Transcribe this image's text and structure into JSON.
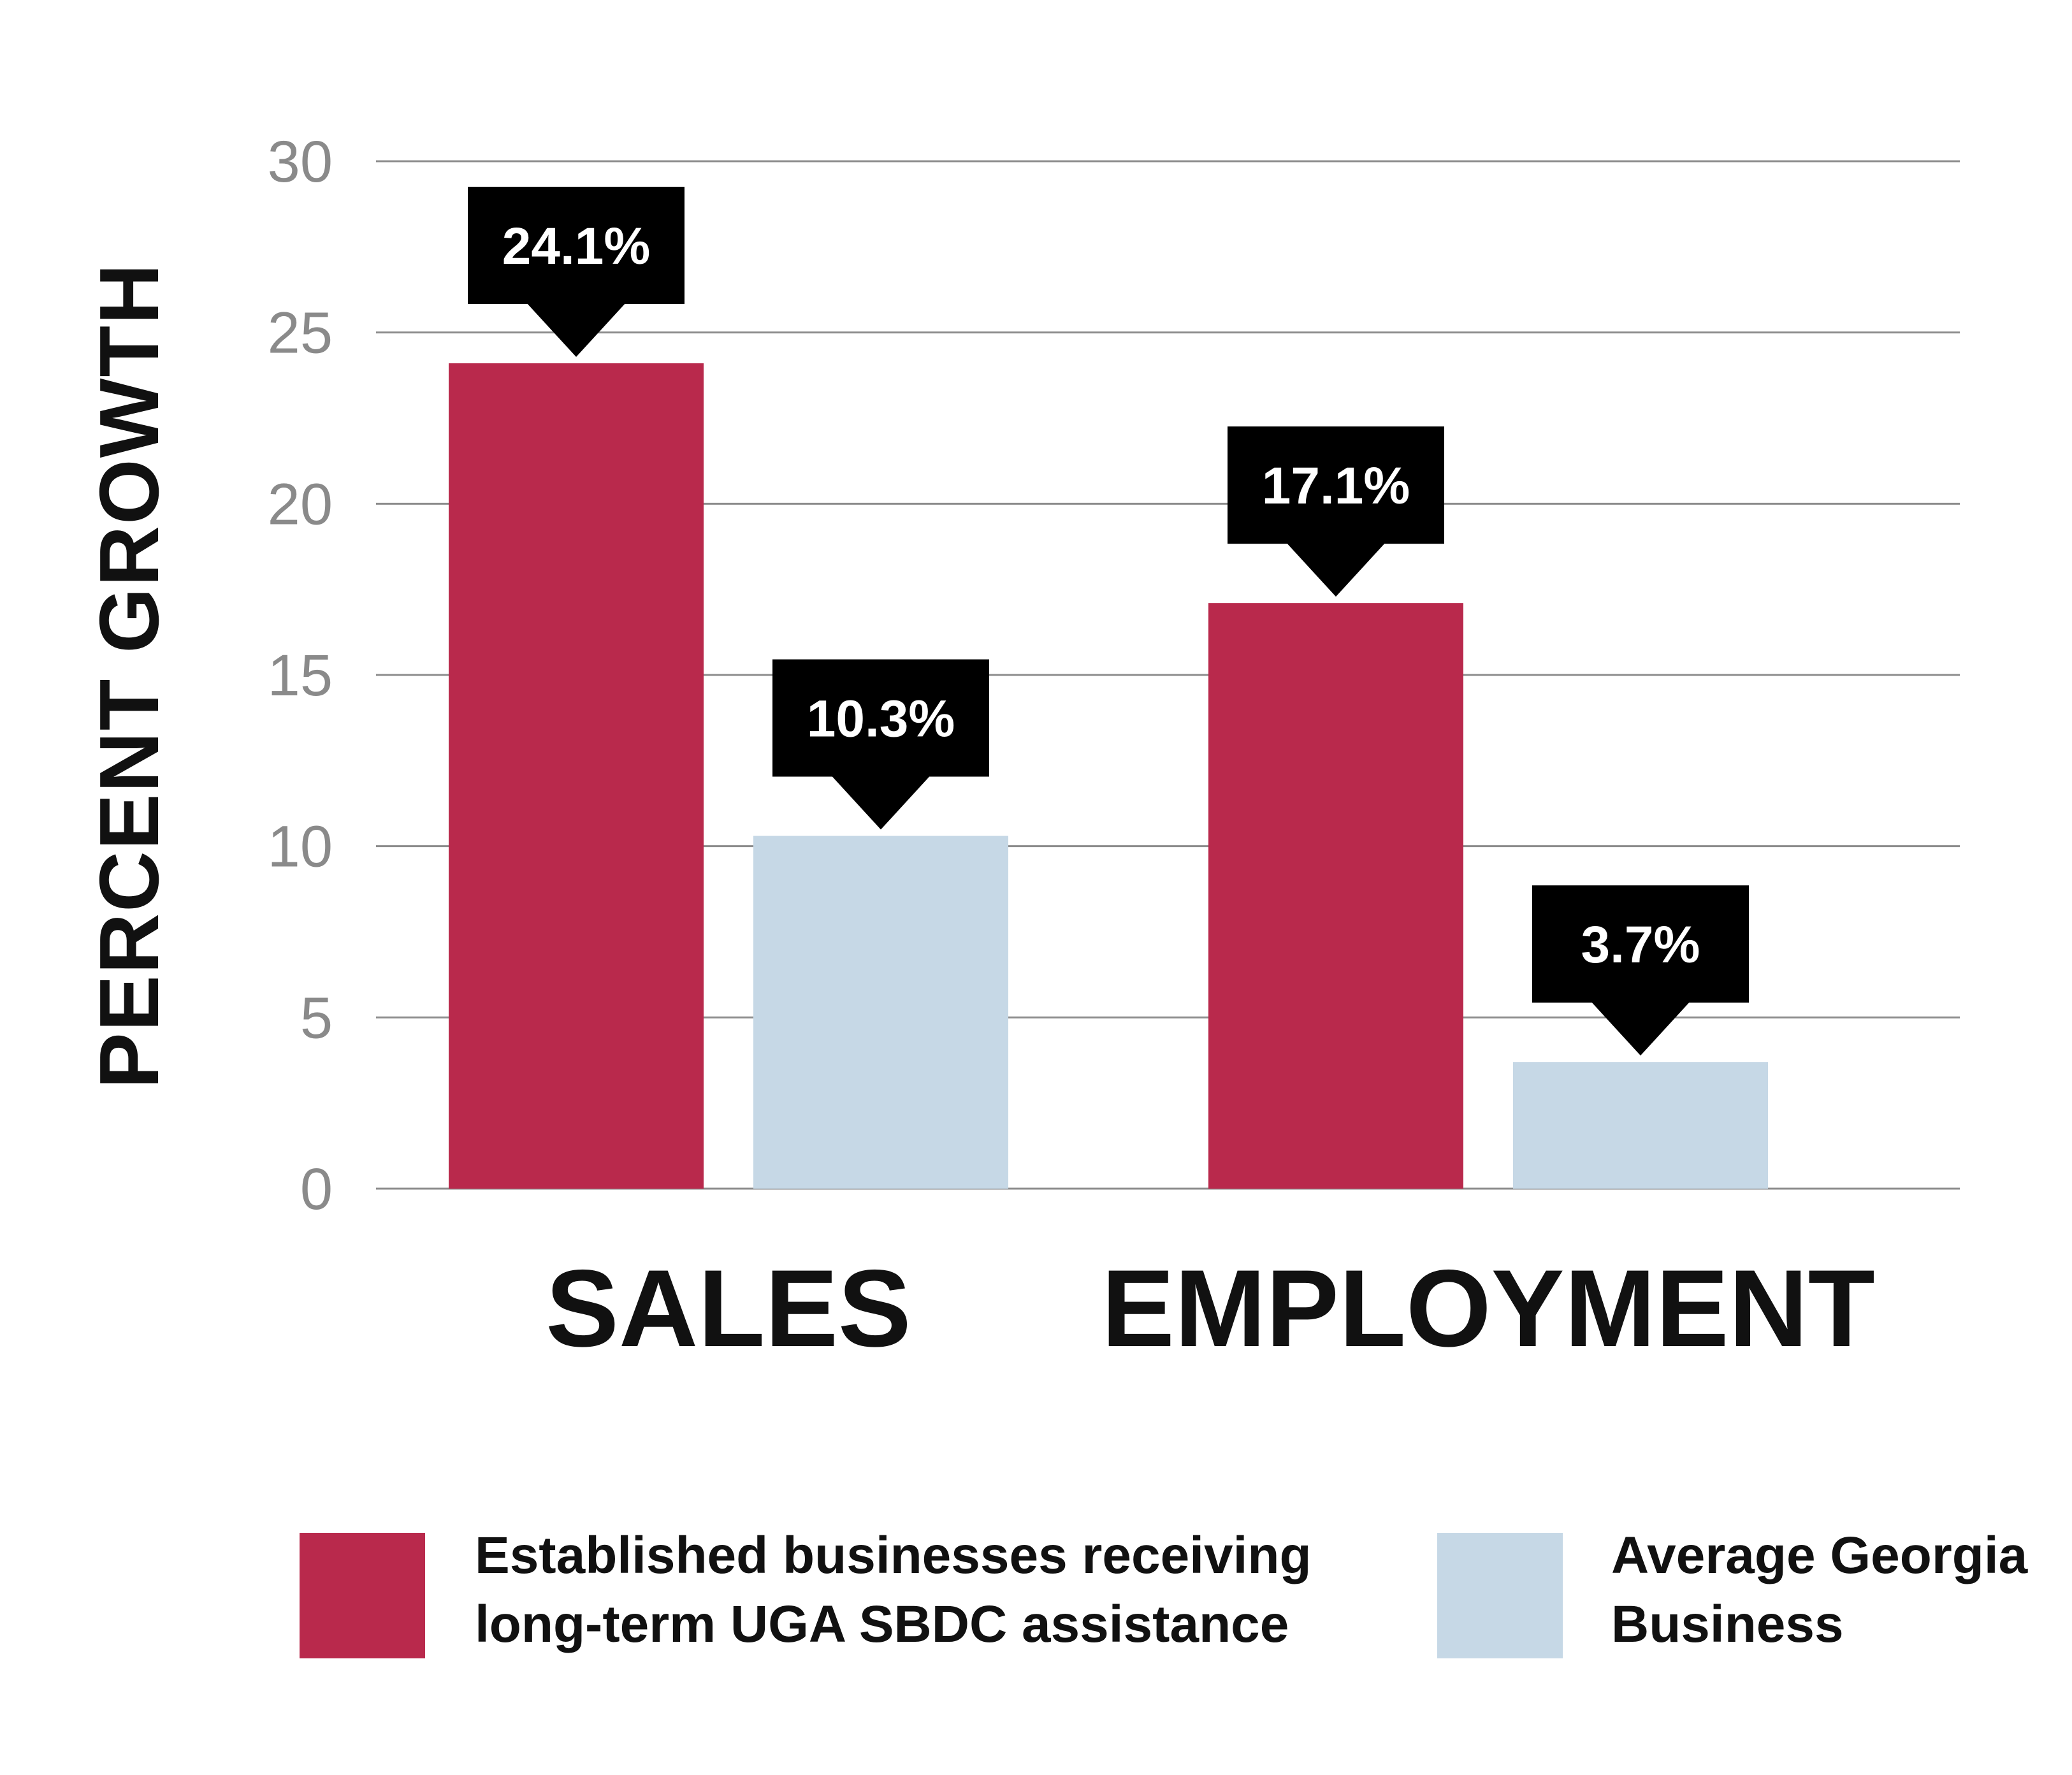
{
  "chart_data": {
    "type": "bar",
    "categories": [
      "SALES",
      "EMPLOYMENT"
    ],
    "series": [
      {
        "name": "Established businesses receiving long-term UGA SBDC assistance",
        "values": [
          24.1,
          17.1
        ],
        "labels": [
          "24.1%",
          "17.1%"
        ],
        "color": "#b9294c"
      },
      {
        "name": "Average Georgia Business",
        "values": [
          10.3,
          3.7
        ],
        "labels": [
          "10.3%",
          "3.7%"
        ],
        "color": "#c6d8e6"
      }
    ],
    "ylabel": "PERCENT GROWTH",
    "xlabel": "",
    "ylim": [
      0,
      30
    ],
    "yticks": [
      "0",
      "5",
      "10",
      "15",
      "20",
      "25",
      "30"
    ],
    "grid": true,
    "legend_position": "bottom",
    "legend": {
      "items": [
        {
          "lines": [
            "Established businesses receiving",
            "long-term UGA SBDC assistance"
          ],
          "color": "#b9294c"
        },
        {
          "lines": [
            "Average Georgia",
            "Business"
          ],
          "color": "#c6d8e6"
        }
      ]
    }
  }
}
